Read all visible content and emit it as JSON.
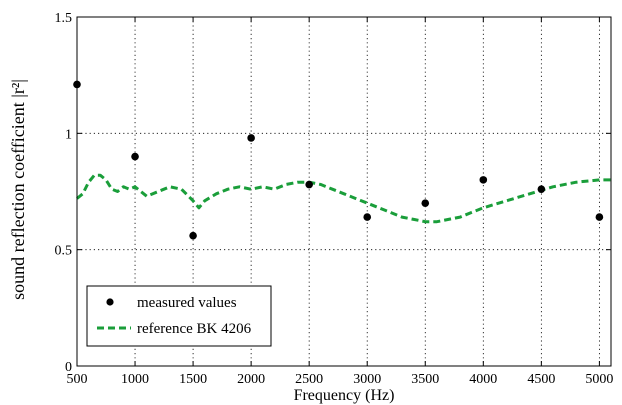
{
  "chart_data": {
    "type": "scatter",
    "xlabel": "Frequency (Hz)",
    "ylabel": "sound reflection coefficient |r²|",
    "xlim": [
      500,
      5100
    ],
    "ylim": [
      0,
      1.5
    ],
    "x_ticks": [
      500,
      1000,
      1500,
      2000,
      2500,
      3000,
      3500,
      4000,
      4500,
      5000
    ],
    "y_ticks": [
      0,
      0.5,
      1,
      1.5
    ],
    "y_tick_labels": [
      "0",
      "0.5",
      "1",
      "1.5"
    ],
    "grid": true,
    "legend_position": "bottom-left",
    "series": [
      {
        "name": "measured values",
        "kind": "scatter",
        "color": "#000000",
        "x": [
          500,
          1000,
          1500,
          2000,
          2500,
          3000,
          3500,
          4000,
          4500,
          5000
        ],
        "y": [
          1.21,
          0.9,
          0.56,
          0.98,
          0.78,
          0.64,
          0.7,
          0.8,
          0.76,
          0.64
        ]
      },
      {
        "name": "reference BK 4206",
        "kind": "line",
        "color": "#1a9e3a",
        "x": [
          500,
          550,
          600,
          650,
          700,
          750,
          800,
          850,
          900,
          950,
          1000,
          1100,
          1200,
          1300,
          1400,
          1500,
          1550,
          1600,
          1700,
          1800,
          1900,
          2000,
          2100,
          2200,
          2300,
          2400,
          2500,
          2600,
          2700,
          2800,
          2900,
          3000,
          3100,
          3200,
          3300,
          3400,
          3500,
          3600,
          3700,
          3800,
          3900,
          4000,
          4200,
          4400,
          4600,
          4800,
          5000,
          5100
        ],
        "y": [
          0.72,
          0.74,
          0.79,
          0.82,
          0.82,
          0.8,
          0.76,
          0.75,
          0.77,
          0.76,
          0.77,
          0.73,
          0.75,
          0.77,
          0.76,
          0.71,
          0.68,
          0.71,
          0.74,
          0.76,
          0.77,
          0.76,
          0.77,
          0.76,
          0.78,
          0.79,
          0.79,
          0.78,
          0.76,
          0.74,
          0.72,
          0.7,
          0.68,
          0.66,
          0.64,
          0.63,
          0.62,
          0.62,
          0.63,
          0.64,
          0.66,
          0.68,
          0.71,
          0.74,
          0.77,
          0.79,
          0.8,
          0.8
        ]
      }
    ]
  }
}
